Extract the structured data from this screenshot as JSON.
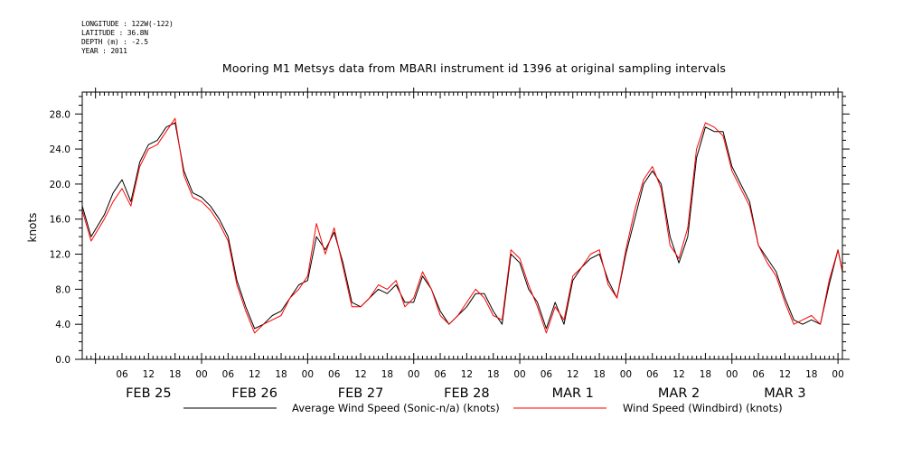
{
  "header": {
    "meta_lines": [
      "LONGITUDE : 122W(-122)",
      "LATITUDE : 36.8N",
      "DEPTH (m) : -2.5",
      "YEAR : 2011"
    ],
    "title": "Mooring M1 Metsys data from MBARI instrument id 1396 at original sampling intervals"
  },
  "chart_data": {
    "type": "line",
    "title": "Mooring M1 Metsys data from MBARI instrument id 1396 at original sampling intervals",
    "ylabel": "knots",
    "xlabel": "",
    "ylim": [
      0,
      30.5
    ],
    "xlim": [
      "2011-02-24T21:00",
      "2011-03-04T01:00"
    ],
    "yticks": [
      "0.0",
      "4.0",
      "8.0",
      "12.0",
      "16.0",
      "20.0",
      "24.0",
      "28.0"
    ],
    "ytick_values": [
      0,
      4,
      8,
      12,
      16,
      20,
      24,
      28
    ],
    "xtick_hours": [
      "06",
      "12",
      "18",
      "00",
      "06",
      "12",
      "18",
      "00",
      "06",
      "12",
      "18",
      "00",
      "06",
      "12",
      "18",
      "00",
      "06",
      "12",
      "18",
      "00",
      "06",
      "12",
      "18",
      "00",
      "06",
      "12",
      "18",
      "00"
    ],
    "day_labels": [
      "FEB 25",
      "FEB 26",
      "FEB 27",
      "FEB 28",
      "MAR  1",
      "MAR  2",
      "MAR  3"
    ],
    "grid": false,
    "legend_position": "bottom",
    "series": [
      {
        "name": "Average Wind Speed (Sonic-n/a) (knots)",
        "color": "#000000",
        "x": [
          "2011-02-24T21:00",
          "2011-02-24T23:00",
          "2011-02-25T02:00",
          "2011-02-25T04:00",
          "2011-02-25T06:00",
          "2011-02-25T08:00",
          "2011-02-25T10:00",
          "2011-02-25T12:00",
          "2011-02-25T14:00",
          "2011-02-25T16:00",
          "2011-02-25T18:00",
          "2011-02-25T20:00",
          "2011-02-25T22:00",
          "2011-02-26T00:00",
          "2011-02-26T02:00",
          "2011-02-26T04:00",
          "2011-02-26T06:00",
          "2011-02-26T08:00",
          "2011-02-26T10:00",
          "2011-02-26T12:00",
          "2011-02-26T14:00",
          "2011-02-26T16:00",
          "2011-02-26T18:00",
          "2011-02-26T20:00",
          "2011-02-26T22:00",
          "2011-02-27T00:00",
          "2011-02-27T02:00",
          "2011-02-27T04:00",
          "2011-02-27T06:00",
          "2011-02-27T08:00",
          "2011-02-27T10:00",
          "2011-02-27T12:00",
          "2011-02-27T14:00",
          "2011-02-27T16:00",
          "2011-02-27T18:00",
          "2011-02-27T20:00",
          "2011-02-27T22:00",
          "2011-02-28T00:00",
          "2011-02-28T02:00",
          "2011-02-28T04:00",
          "2011-02-28T06:00",
          "2011-02-28T08:00",
          "2011-02-28T10:00",
          "2011-02-28T12:00",
          "2011-02-28T14:00",
          "2011-02-28T16:00",
          "2011-02-28T18:00",
          "2011-02-28T20:00",
          "2011-02-28T22:00",
          "2011-03-01T00:00",
          "2011-03-01T02:00",
          "2011-03-01T04:00",
          "2011-03-01T06:00",
          "2011-03-01T08:00",
          "2011-03-01T10:00",
          "2011-03-01T12:00",
          "2011-03-01T14:00",
          "2011-03-01T16:00",
          "2011-03-01T18:00",
          "2011-03-01T20:00",
          "2011-03-01T22:00",
          "2011-03-02T00:00",
          "2011-03-02T02:00",
          "2011-03-02T04:00",
          "2011-03-02T06:00",
          "2011-03-02T08:00",
          "2011-03-02T10:00",
          "2011-03-02T12:00",
          "2011-03-02T14:00",
          "2011-03-02T16:00",
          "2011-03-02T18:00",
          "2011-03-02T20:00",
          "2011-03-02T22:00",
          "2011-03-03T00:00",
          "2011-03-03T02:00",
          "2011-03-03T04:00",
          "2011-03-03T06:00",
          "2011-03-03T08:00",
          "2011-03-03T10:00",
          "2011-03-03T12:00",
          "2011-03-03T14:00",
          "2011-03-03T16:00",
          "2011-03-03T18:00",
          "2011-03-03T20:00",
          "2011-03-03T22:00",
          "2011-03-04T00:00",
          "2011-03-04T01:00"
        ],
        "values": [
          17.5,
          14.0,
          16.5,
          19.0,
          20.5,
          18.0,
          22.5,
          24.5,
          25.0,
          26.5,
          27.0,
          21.5,
          19.0,
          18.5,
          17.5,
          16.0,
          14.0,
          9.0,
          6.0,
          3.5,
          4.0,
          5.0,
          5.5,
          7.0,
          8.5,
          9.0,
          14.0,
          12.5,
          14.5,
          11.0,
          6.5,
          6.0,
          7.0,
          8.0,
          7.5,
          8.5,
          6.5,
          6.5,
          9.5,
          8.0,
          5.5,
          4.0,
          5.0,
          6.0,
          7.5,
          7.5,
          5.5,
          4.0,
          12.0,
          11.0,
          8.0,
          6.5,
          3.5,
          6.5,
          4.0,
          9.0,
          10.5,
          11.5,
          12.0,
          9.0,
          7.0,
          12.0,
          16.0,
          20.0,
          21.5,
          20.0,
          14.0,
          11.0,
          14.0,
          23.0,
          26.5,
          26.0,
          26.0,
          22.0,
          20.0,
          18.0,
          13.0,
          11.5,
          10.0,
          7.0,
          4.5,
          4.0,
          4.5,
          4.0,
          8.5,
          12.5,
          10.0
        ]
      },
      {
        "name": "Wind Speed (Windbird) (knots)",
        "color": "#ff0000",
        "x": [
          "2011-02-24T21:00",
          "2011-02-24T23:00",
          "2011-02-25T02:00",
          "2011-02-25T04:00",
          "2011-02-25T06:00",
          "2011-02-25T08:00",
          "2011-02-25T10:00",
          "2011-02-25T12:00",
          "2011-02-25T14:00",
          "2011-02-25T16:00",
          "2011-02-25T18:00",
          "2011-02-25T20:00",
          "2011-02-25T22:00",
          "2011-02-26T00:00",
          "2011-02-26T02:00",
          "2011-02-26T04:00",
          "2011-02-26T06:00",
          "2011-02-26T08:00",
          "2011-02-26T10:00",
          "2011-02-26T12:00",
          "2011-02-26T14:00",
          "2011-02-26T16:00",
          "2011-02-26T18:00",
          "2011-02-26T20:00",
          "2011-02-26T22:00",
          "2011-02-27T00:00",
          "2011-02-27T02:00",
          "2011-02-27T04:00",
          "2011-02-27T06:00",
          "2011-02-27T08:00",
          "2011-02-27T10:00",
          "2011-02-27T12:00",
          "2011-02-27T14:00",
          "2011-02-27T16:00",
          "2011-02-27T18:00",
          "2011-02-27T20:00",
          "2011-02-27T22:00",
          "2011-02-28T00:00",
          "2011-02-28T02:00",
          "2011-02-28T04:00",
          "2011-02-28T06:00",
          "2011-02-28T08:00",
          "2011-02-28T10:00",
          "2011-02-28T12:00",
          "2011-02-28T14:00",
          "2011-02-28T16:00",
          "2011-02-28T18:00",
          "2011-02-28T20:00",
          "2011-02-28T22:00",
          "2011-03-01T00:00",
          "2011-03-01T02:00",
          "2011-03-01T04:00",
          "2011-03-01T06:00",
          "2011-03-01T08:00",
          "2011-03-01T10:00",
          "2011-03-01T12:00",
          "2011-03-01T14:00",
          "2011-03-01T16:00",
          "2011-03-01T18:00",
          "2011-03-01T20:00",
          "2011-03-01T22:00",
          "2011-03-02T00:00",
          "2011-03-02T02:00",
          "2011-03-02T04:00",
          "2011-03-02T06:00",
          "2011-03-02T08:00",
          "2011-03-02T10:00",
          "2011-03-02T12:00",
          "2011-03-02T14:00",
          "2011-03-02T16:00",
          "2011-03-02T18:00",
          "2011-03-02T20:00",
          "2011-03-02T22:00",
          "2011-03-03T00:00",
          "2011-03-03T02:00",
          "2011-03-03T04:00",
          "2011-03-03T06:00",
          "2011-03-03T08:00",
          "2011-03-03T10:00",
          "2011-03-03T12:00",
          "2011-03-03T14:00",
          "2011-03-03T16:00",
          "2011-03-03T18:00",
          "2011-03-03T20:00",
          "2011-03-03T22:00",
          "2011-03-04T00:00",
          "2011-03-04T01:00"
        ],
        "values": [
          17.0,
          13.5,
          16.0,
          18.0,
          19.5,
          17.5,
          22.0,
          24.0,
          24.5,
          26.0,
          27.5,
          21.0,
          18.5,
          18.0,
          17.0,
          15.5,
          13.5,
          8.5,
          5.5,
          3.0,
          4.0,
          4.5,
          5.0,
          7.0,
          8.0,
          9.5,
          15.5,
          12.0,
          15.0,
          10.5,
          6.0,
          6.0,
          7.0,
          8.5,
          8.0,
          9.0,
          6.0,
          7.0,
          10.0,
          8.0,
          5.0,
          4.0,
          5.0,
          6.5,
          8.0,
          7.0,
          5.0,
          4.5,
          12.5,
          11.5,
          8.5,
          6.0,
          3.0,
          6.0,
          4.5,
          9.5,
          10.5,
          12.0,
          12.5,
          8.5,
          7.0,
          12.5,
          17.0,
          20.5,
          22.0,
          19.5,
          13.0,
          11.5,
          15.0,
          24.0,
          27.0,
          26.5,
          25.5,
          21.5,
          19.5,
          17.5,
          13.0,
          11.0,
          9.5,
          6.5,
          4.0,
          4.5,
          5.0,
          4.0,
          9.0,
          12.5,
          10.0
        ]
      }
    ]
  }
}
